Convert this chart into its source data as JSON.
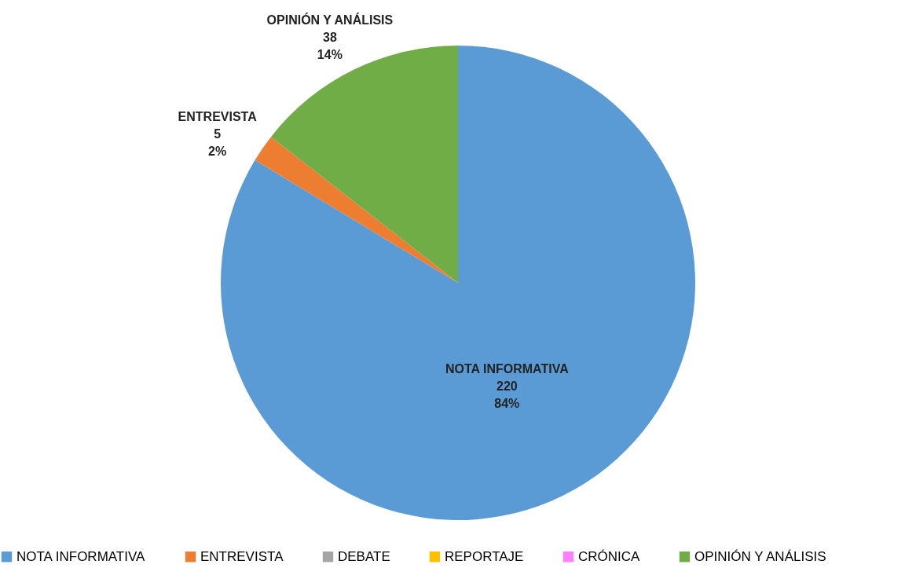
{
  "chart_data": {
    "type": "pie",
    "categories": [
      "NOTA INFORMATIVA",
      "ENTREVISTA",
      "DEBATE",
      "REPORTAJE",
      "CRÓNICA",
      "OPINIÓN Y ANÁLISIS"
    ],
    "values": [
      220,
      5,
      0,
      0,
      0,
      38
    ],
    "colors": [
      "#5b9bd5",
      "#ed7d31",
      "#a5a5a5",
      "#ffc000",
      "#ff80ff",
      "#70ad47"
    ],
    "value_labels": [
      "220\n84%",
      "5\n2%",
      null,
      null,
      null,
      "38\n14%"
    ],
    "legend": "bottom"
  }
}
